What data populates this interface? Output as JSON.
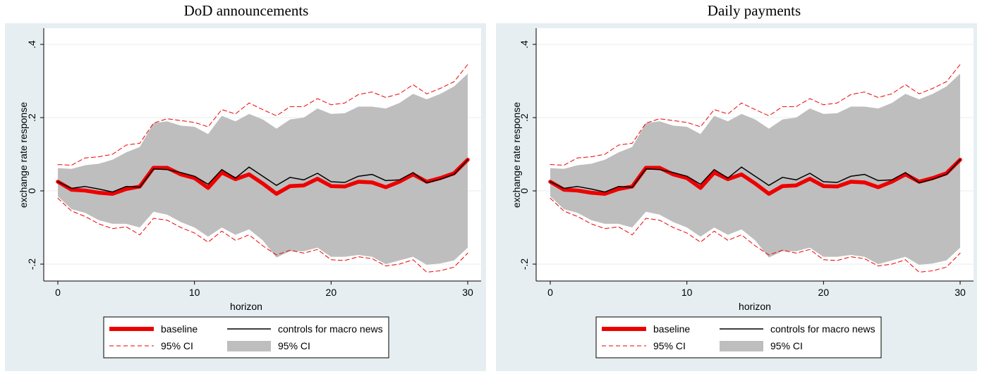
{
  "chart_data": [
    {
      "type": "line",
      "title": "DoD announcements",
      "xlabel": "horizon",
      "ylabel": "exchange rate response",
      "xlim": [
        0,
        30
      ],
      "ylim": [
        -0.24,
        0.41
      ],
      "xticks": [
        0,
        10,
        20,
        30
      ],
      "xtick_labels": [
        "0",
        "10",
        "20",
        "30"
      ],
      "yticks": [
        -0.2,
        0,
        0.2,
        0.4
      ],
      "ytick_labels": [
        "-.2",
        "0",
        ".2",
        ".4"
      ],
      "grid": true,
      "legend_position": "bottom",
      "colors": {
        "baseline": "#ee0000",
        "ci_dashed": "#ee0000",
        "macro": "#000000",
        "ci_band": "#bebebe",
        "plot_bg": "#ffffff",
        "panel_bg": "#e6eef2"
      },
      "x": [
        0,
        1,
        2,
        3,
        4,
        5,
        6,
        7,
        8,
        9,
        10,
        11,
        12,
        13,
        14,
        15,
        16,
        17,
        18,
        19,
        20,
        21,
        22,
        23,
        24,
        25,
        26,
        27,
        28,
        29,
        30
      ],
      "series": [
        {
          "name": "baseline",
          "style": "thick-solid",
          "values": [
            0.025,
            0.003,
            0.001,
            -0.005,
            -0.008,
            0.005,
            0.012,
            0.063,
            0.063,
            0.045,
            0.035,
            0.008,
            0.05,
            0.032,
            0.045,
            0.02,
            -0.008,
            0.013,
            0.015,
            0.033,
            0.013,
            0.012,
            0.025,
            0.023,
            0.01,
            0.025,
            0.045,
            0.025,
            0.035,
            0.048,
            0.085
          ]
        },
        {
          "name": "controls for macro news",
          "style": "thin-solid",
          "values": [
            0.025,
            0.007,
            0.012,
            0.005,
            -0.003,
            0.012,
            0.01,
            0.06,
            0.058,
            0.05,
            0.04,
            0.018,
            0.058,
            0.035,
            0.065,
            0.04,
            0.015,
            0.037,
            0.03,
            0.048,
            0.025,
            0.023,
            0.04,
            0.045,
            0.028,
            0.03,
            0.05,
            0.022,
            0.032,
            0.045,
            0.085
          ]
        },
        {
          "name": "95% CI",
          "style": "dashed-upper",
          "values": [
            0.072,
            0.07,
            0.09,
            0.093,
            0.1,
            0.125,
            0.13,
            0.185,
            0.197,
            0.192,
            0.187,
            0.175,
            0.222,
            0.21,
            0.24,
            0.222,
            0.205,
            0.23,
            0.23,
            0.252,
            0.235,
            0.24,
            0.263,
            0.27,
            0.255,
            0.265,
            0.29,
            0.265,
            0.28,
            0.298,
            0.345
          ]
        },
        {
          "name": "95% CI",
          "style": "dashed-lower",
          "values": [
            -0.02,
            -0.055,
            -0.07,
            -0.09,
            -0.103,
            -0.098,
            -0.12,
            -0.075,
            -0.08,
            -0.1,
            -0.115,
            -0.14,
            -0.11,
            -0.135,
            -0.12,
            -0.15,
            -0.175,
            -0.162,
            -0.17,
            -0.16,
            -0.188,
            -0.19,
            -0.18,
            -0.185,
            -0.205,
            -0.2,
            -0.188,
            -0.222,
            -0.218,
            -0.208,
            -0.17
          ]
        },
        {
          "name": "95% CI",
          "style": "band-upper",
          "values": [
            0.062,
            0.06,
            0.07,
            0.074,
            0.085,
            0.105,
            0.12,
            0.185,
            0.19,
            0.178,
            0.175,
            0.155,
            0.205,
            0.19,
            0.21,
            0.195,
            0.17,
            0.195,
            0.2,
            0.225,
            0.21,
            0.212,
            0.23,
            0.23,
            0.225,
            0.24,
            0.265,
            0.25,
            0.265,
            0.285,
            0.32
          ]
        },
        {
          "name": "95% CI",
          "style": "band-lower",
          "values": [
            -0.015,
            -0.05,
            -0.06,
            -0.08,
            -0.09,
            -0.09,
            -0.1,
            -0.057,
            -0.065,
            -0.085,
            -0.1,
            -0.125,
            -0.1,
            -0.12,
            -0.105,
            -0.135,
            -0.182,
            -0.165,
            -0.165,
            -0.155,
            -0.18,
            -0.18,
            -0.175,
            -0.18,
            -0.2,
            -0.19,
            -0.18,
            -0.202,
            -0.198,
            -0.19,
            -0.155
          ]
        }
      ],
      "legend": [
        {
          "label": "baseline",
          "key": "thick-solid"
        },
        {
          "label": "controls for macro news",
          "key": "thin-solid"
        },
        {
          "label": "95% CI",
          "key": "dashed"
        },
        {
          "label": "95% CI",
          "key": "band"
        }
      ]
    },
    {
      "type": "line",
      "title": "Daily payments",
      "xlabel": "horizon",
      "ylabel": "exchange rate response",
      "xlim": [
        0,
        30
      ],
      "ylim": [
        -0.24,
        0.41
      ],
      "xticks": [
        0,
        10,
        20,
        30
      ],
      "xtick_labels": [
        "0",
        "10",
        "20",
        "30"
      ],
      "yticks": [
        -0.2,
        0,
        0.2,
        0.4
      ],
      "ytick_labels": [
        "-.2",
        "0",
        ".2",
        ".4"
      ],
      "grid": true,
      "legend_position": "bottom",
      "colors": {
        "baseline": "#ee0000",
        "ci_dashed": "#ee0000",
        "macro": "#000000",
        "ci_band": "#bebebe",
        "plot_bg": "#ffffff",
        "panel_bg": "#e6eef2"
      },
      "x": [
        0,
        1,
        2,
        3,
        4,
        5,
        6,
        7,
        8,
        9,
        10,
        11,
        12,
        13,
        14,
        15,
        16,
        17,
        18,
        19,
        20,
        21,
        22,
        23,
        24,
        25,
        26,
        27,
        28,
        29,
        30
      ],
      "series": [
        {
          "name": "baseline",
          "style": "thick-solid",
          "values": [
            0.025,
            0.003,
            0.001,
            -0.005,
            -0.008,
            0.005,
            0.012,
            0.063,
            0.063,
            0.045,
            0.035,
            0.008,
            0.05,
            0.032,
            0.045,
            0.02,
            -0.008,
            0.013,
            0.015,
            0.033,
            0.013,
            0.012,
            0.025,
            0.023,
            0.01,
            0.025,
            0.045,
            0.025,
            0.035,
            0.048,
            0.085
          ]
        },
        {
          "name": "controls for macro news",
          "style": "thin-solid",
          "values": [
            0.025,
            0.007,
            0.012,
            0.005,
            -0.003,
            0.012,
            0.01,
            0.06,
            0.058,
            0.05,
            0.04,
            0.018,
            0.058,
            0.035,
            0.065,
            0.04,
            0.015,
            0.037,
            0.03,
            0.048,
            0.025,
            0.023,
            0.04,
            0.045,
            0.028,
            0.03,
            0.05,
            0.022,
            0.032,
            0.045,
            0.085
          ]
        },
        {
          "name": "95% CI",
          "style": "dashed-upper",
          "values": [
            0.072,
            0.07,
            0.09,
            0.093,
            0.1,
            0.125,
            0.13,
            0.185,
            0.197,
            0.192,
            0.187,
            0.175,
            0.222,
            0.21,
            0.24,
            0.222,
            0.205,
            0.23,
            0.23,
            0.252,
            0.235,
            0.24,
            0.263,
            0.27,
            0.255,
            0.265,
            0.29,
            0.265,
            0.28,
            0.298,
            0.345
          ]
        },
        {
          "name": "95% CI",
          "style": "dashed-lower",
          "values": [
            -0.02,
            -0.055,
            -0.07,
            -0.09,
            -0.103,
            -0.098,
            -0.12,
            -0.075,
            -0.08,
            -0.1,
            -0.115,
            -0.14,
            -0.11,
            -0.135,
            -0.12,
            -0.15,
            -0.175,
            -0.162,
            -0.17,
            -0.16,
            -0.188,
            -0.19,
            -0.18,
            -0.185,
            -0.205,
            -0.2,
            -0.188,
            -0.222,
            -0.218,
            -0.208,
            -0.17
          ]
        },
        {
          "name": "95% CI",
          "style": "band-upper",
          "values": [
            0.062,
            0.06,
            0.07,
            0.074,
            0.085,
            0.105,
            0.12,
            0.185,
            0.19,
            0.178,
            0.175,
            0.155,
            0.205,
            0.19,
            0.21,
            0.195,
            0.17,
            0.195,
            0.2,
            0.225,
            0.21,
            0.212,
            0.23,
            0.23,
            0.225,
            0.24,
            0.265,
            0.25,
            0.265,
            0.285,
            0.32
          ]
        },
        {
          "name": "95% CI",
          "style": "band-lower",
          "values": [
            -0.015,
            -0.05,
            -0.06,
            -0.08,
            -0.09,
            -0.09,
            -0.1,
            -0.057,
            -0.065,
            -0.085,
            -0.1,
            -0.125,
            -0.1,
            -0.12,
            -0.105,
            -0.135,
            -0.182,
            -0.165,
            -0.165,
            -0.155,
            -0.18,
            -0.18,
            -0.175,
            -0.18,
            -0.2,
            -0.19,
            -0.18,
            -0.202,
            -0.198,
            -0.19,
            -0.155
          ]
        }
      ],
      "legend": [
        {
          "label": "baseline",
          "key": "thick-solid"
        },
        {
          "label": "controls for macro news",
          "key": "thin-solid"
        },
        {
          "label": "95% CI",
          "key": "dashed"
        },
        {
          "label": "95% CI",
          "key": "band"
        }
      ]
    }
  ]
}
